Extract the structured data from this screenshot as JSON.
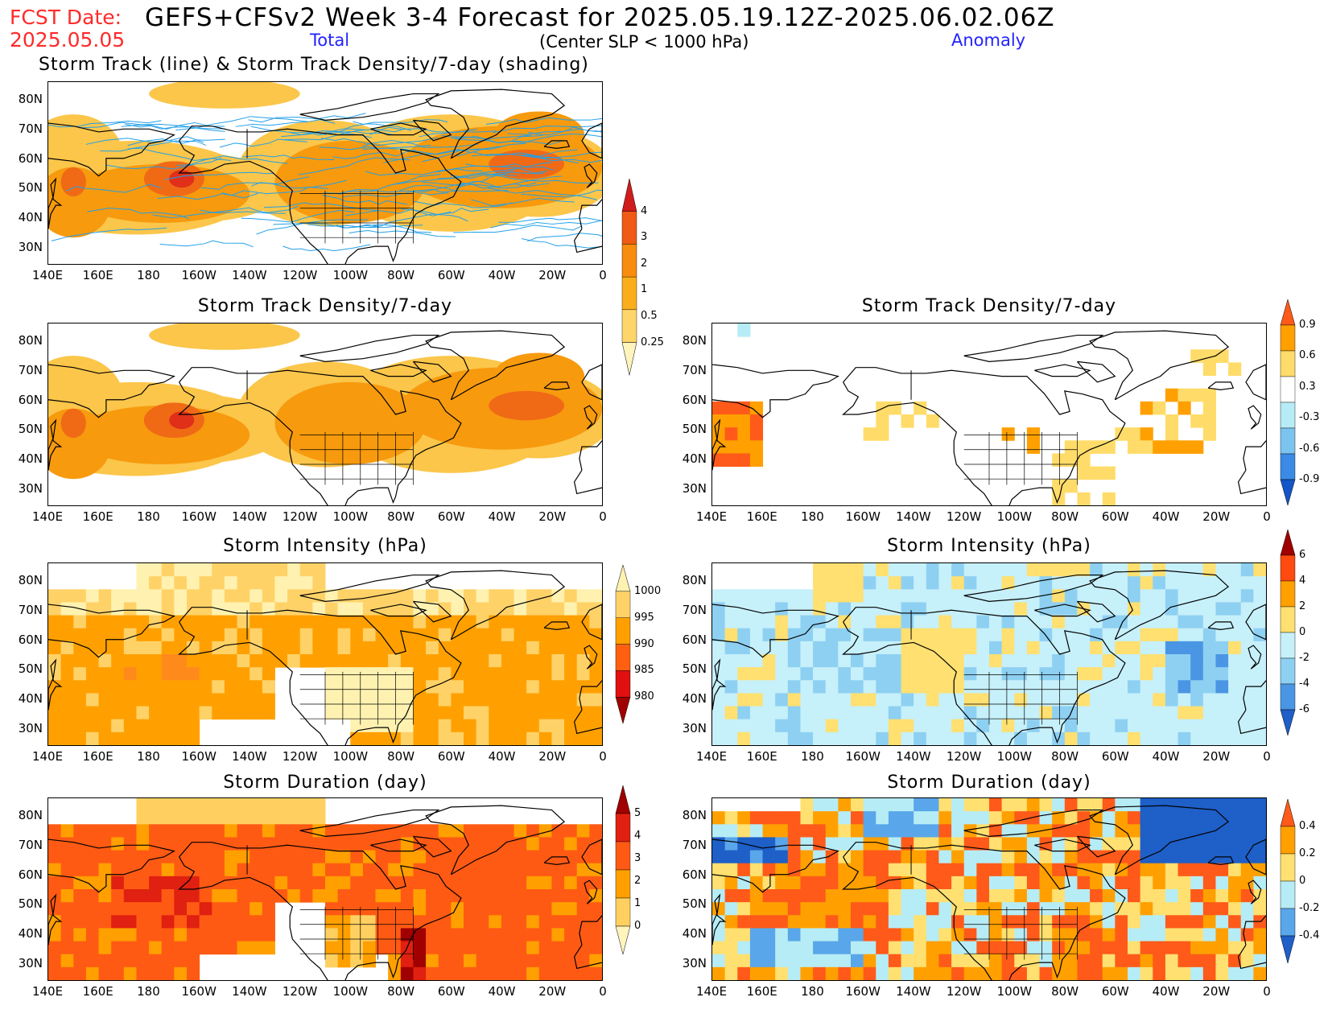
{
  "header": {
    "fcst_label": "FCST Date:",
    "fcst_date": "2025.05.05",
    "title": "GEFS+CFSv2 Week 3-4 Forecast for 2025.05.19.12Z-2025.06.02.06Z",
    "total_label": "Total",
    "subtitle": "(Center SLP < 1000 hPa)",
    "anomaly_label": "Anomaly"
  },
  "axes": {
    "lat_labels": [
      "80N",
      "70N",
      "60N",
      "50N",
      "40N",
      "30N"
    ],
    "lon_labels": [
      "140E",
      "160E",
      "180",
      "160W",
      "140W",
      "120W",
      "100W",
      "80W",
      "60W",
      "40W",
      "20W",
      "0"
    ]
  },
  "panels": [
    {
      "id": "track-total",
      "title": "Storm Track (line) & Storm Track Density/7-day (shading)",
      "field": "density",
      "tracks": true
    },
    {
      "id": "density-total",
      "title": "Storm Track Density/7-day",
      "field": "density"
    },
    {
      "id": "density-anom",
      "title": "Storm Track Density/7-day",
      "field": "density-anom"
    },
    {
      "id": "intensity-total",
      "title": "Storm Intensity (hPa)",
      "field": "intensity"
    },
    {
      "id": "intensity-anom",
      "title": "Storm Intensity (hPa)",
      "field": "intensity-anom"
    },
    {
      "id": "duration-total",
      "title": "Storm Duration (day)",
      "field": "duration"
    },
    {
      "id": "duration-anom",
      "title": "Storm Duration (day)",
      "field": "duration-anom"
    }
  ],
  "colorbars": [
    {
      "id": "cb-density",
      "labels": [
        "4",
        "3",
        "2",
        "1",
        "0.5",
        "0.25"
      ],
      "colors": [
        "#d01c1c",
        "#f05a14",
        "#f88c0c",
        "#fbae1c",
        "#fdd56a",
        "#fff4bb"
      ]
    },
    {
      "id": "cb-density-anom",
      "labels": [
        "0.9",
        "0.6",
        "0.3",
        "-0.3",
        "-0.6",
        "-0.9"
      ],
      "colors": [
        "#ff5a1a",
        "#ffa000",
        "#ffdc6a",
        "#ffffff",
        "#b6ecf5",
        "#7cc4f0",
        "#3a8ae6",
        "#1456c8"
      ]
    },
    {
      "id": "cb-intensity",
      "labels": [
        "1000",
        "995",
        "990",
        "985",
        "980"
      ],
      "colors": [
        "#fff2b0",
        "#ffd268",
        "#ffa000",
        "#ff6010",
        "#e01010",
        "#a00000"
      ]
    },
    {
      "id": "cb-intensity-anom",
      "labels": [
        "6",
        "4",
        "2",
        "0",
        "-2",
        "-4",
        "-6"
      ],
      "colors": [
        "#a00000",
        "#ff4a10",
        "#ffa000",
        "#ffe070",
        "#c6f0fa",
        "#8ed0f2",
        "#4a96e4",
        "#1e5fc8"
      ]
    },
    {
      "id": "cb-duration",
      "labels": [
        "5",
        "4",
        "3",
        "2",
        "1",
        "0"
      ],
      "colors": [
        "#a00000",
        "#e02010",
        "#ff5a14",
        "#ffa000",
        "#ffd060",
        "#fff4bb"
      ]
    },
    {
      "id": "cb-duration-anom",
      "labels": [
        "0.4",
        "0.2",
        "0",
        "-0.2",
        "-0.4"
      ],
      "colors": [
        "#ff5a1a",
        "#ffa000",
        "#ffe070",
        "#b6ecf5",
        "#5aa6ea",
        "#1e5fc8"
      ]
    }
  ]
}
